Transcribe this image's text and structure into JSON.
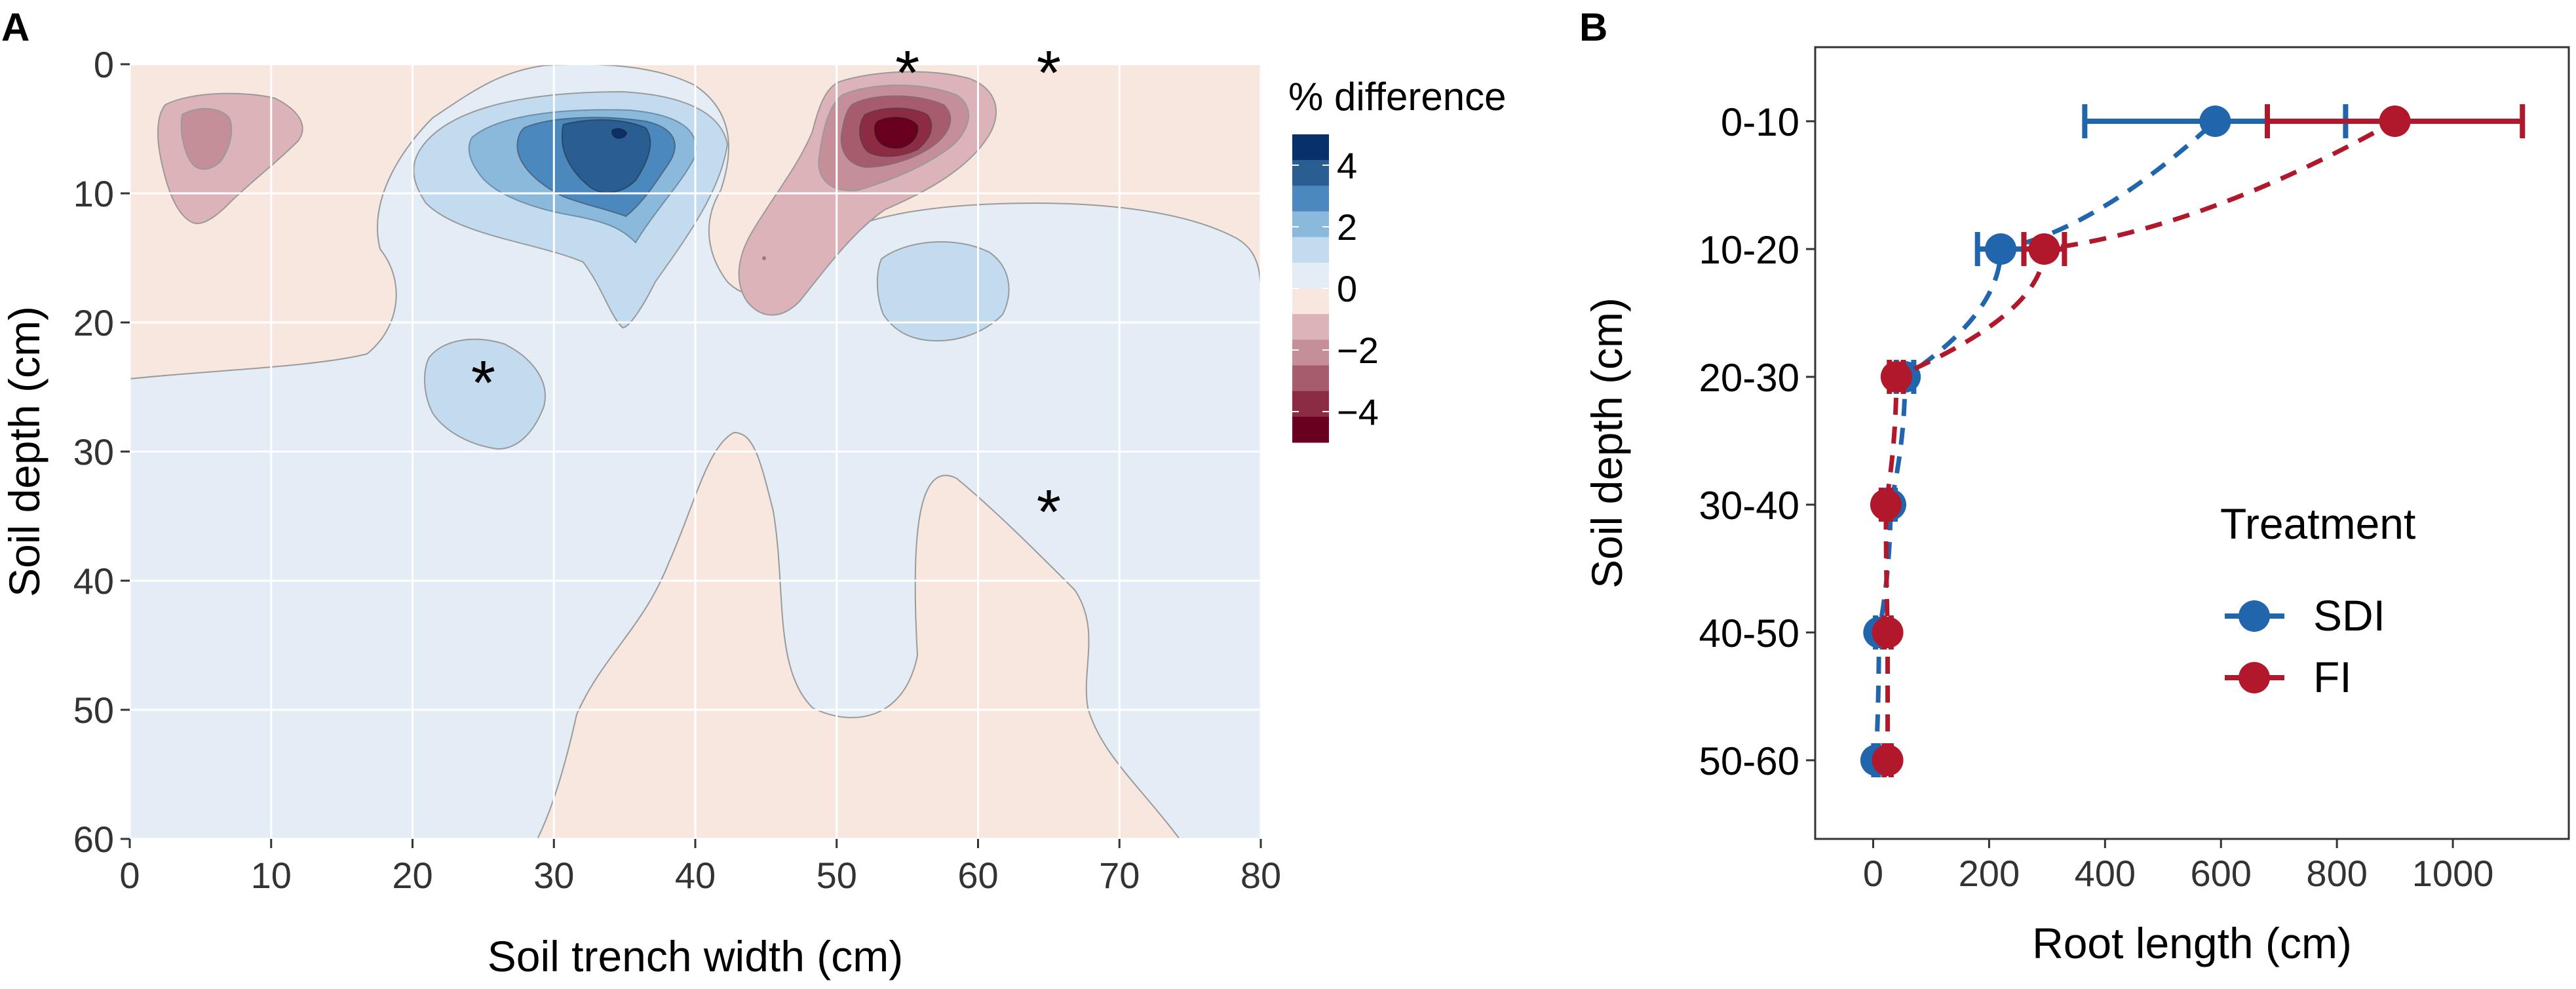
{
  "chart_data": [
    {
      "panel_label": "A",
      "type": "heatmap",
      "subtype": "filled-contour",
      "xlabel": "Soil trench width (cm)",
      "ylabel": "Soil depth (cm)",
      "xlim": [
        0,
        80
      ],
      "ylim": [
        60,
        0
      ],
      "x_ticks": [
        "0",
        "10",
        "20",
        "30",
        "40",
        "50",
        "60",
        "70",
        "80"
      ],
      "y_ticks": [
        "0",
        "10",
        "20",
        "30",
        "40",
        "50",
        "60"
      ],
      "legend": {
        "title": "% difference",
        "labels": [
          "4",
          "2",
          "0",
          "−2",
          "−4"
        ],
        "levels": [
          5,
          4,
          3,
          2,
          1,
          0,
          -1,
          -2,
          -3,
          -4,
          -5
        ],
        "colors": [
          "#08306b",
          "#2a5e92",
          "#4a88bd",
          "#8ab9dc",
          "#c3dbee",
          "#e4edf6",
          "#f8e7df",
          "#dcb3b9",
          "#c58f99",
          "#a65c6c",
          "#8b2c43",
          "#6a001f"
        ]
      },
      "features": [
        {
          "type": "positive_peak",
          "x": 35,
          "y": 5,
          "value": 5
        },
        {
          "type": "positive_region",
          "x": 25,
          "y": 25,
          "value": 1.5
        },
        {
          "type": "positive_region",
          "x": 58,
          "y": 18,
          "value": 1.5
        },
        {
          "type": "negative_peak",
          "x": 55,
          "y": 5,
          "value": -5
        },
        {
          "type": "negative_region",
          "x": 5,
          "y": 5,
          "value": -2
        }
      ],
      "annotations": [
        {
          "text": "*",
          "x": 55,
          "y": 0
        },
        {
          "text": "*",
          "x": 65,
          "y": 0
        },
        {
          "text": "*",
          "x": 25,
          "y": 24
        },
        {
          "text": "*",
          "x": 65,
          "y": 34
        }
      ]
    },
    {
      "panel_label": "B",
      "type": "scatter",
      "xlabel": "Root length (cm)",
      "ylabel": "Soil depth (cm)",
      "xlim": [
        -100,
        1200
      ],
      "x_ticks": [
        0,
        200,
        400,
        600,
        800,
        1000
      ],
      "categories": [
        "0-10",
        "10-20",
        "20-30",
        "30-40",
        "40-50",
        "50-60"
      ],
      "legend_title": "Treatment",
      "legend_position": "right",
      "series": [
        {
          "name": "SDI",
          "color": "#2166ac",
          "values": [
            590,
            220,
            55,
            30,
            10,
            5
          ],
          "err": [
            225,
            40,
            15,
            8,
            6,
            4
          ]
        },
        {
          "name": "FI",
          "color": "#b2182b",
          "values": [
            900,
            295,
            40,
            22,
            25,
            25
          ],
          "err": [
            220,
            35,
            12,
            8,
            6,
            6
          ]
        }
      ]
    }
  ]
}
